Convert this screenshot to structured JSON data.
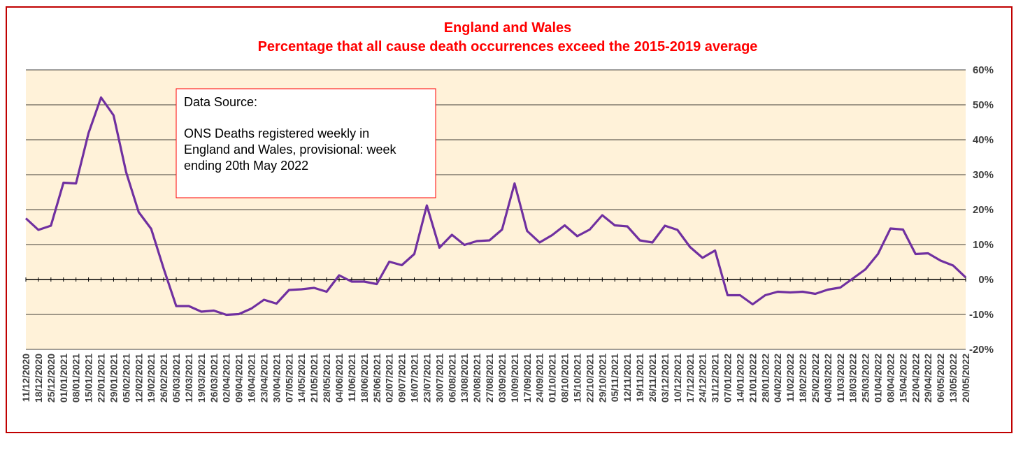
{
  "chart_data": {
    "type": "line",
    "title": "England and Wales",
    "subtitle": "Percentage that all cause death occurrences exceed the 2015-2019 average",
    "xlabel": "",
    "ylabel": "",
    "ylim": [
      -20,
      60
    ],
    "yticks": [
      "-20%",
      "-10%",
      "0%",
      "10%",
      "20%",
      "30%",
      "40%",
      "50%",
      "60%"
    ],
    "grid": true,
    "legend": "none",
    "annotation": {
      "lines": [
        "Data Source:",
        "",
        "ONS Deaths registered weekly in",
        "England and Wales, provisional: week",
        "ending 20th May 2022"
      ]
    },
    "colors": {
      "line": "#7030a0",
      "plot_background": "#fff2d9",
      "title": "#ff0000",
      "border": "#c00000"
    },
    "x": [
      "11/12/2020",
      "18/12/2020",
      "25/12/2020",
      "01/01/2021",
      "08/01/2021",
      "15/01/2021",
      "22/01/2021",
      "29/01/2021",
      "05/02/2021",
      "12/02/2021",
      "19/02/2021",
      "26/02/2021",
      "05/03/2021",
      "12/03/2021",
      "19/03/2021",
      "26/03/2021",
      "02/04/2021",
      "09/04/2021",
      "16/04/2021",
      "23/04/2021",
      "30/04/2021",
      "07/05/2021",
      "14/05/2021",
      "21/05/2021",
      "28/05/2021",
      "04/06/2021",
      "11/06/2021",
      "18/06/2021",
      "25/06/2021",
      "02/07/2021",
      "09/07/2021",
      "16/07/2021",
      "23/07/2021",
      "30/07/2021",
      "06/08/2021",
      "13/08/2021",
      "20/08/2021",
      "27/08/2021",
      "03/09/2021",
      "10/09/2021",
      "17/09/2021",
      "24/09/2021",
      "01/10/2021",
      "08/10/2021",
      "15/10/2021",
      "22/10/2021",
      "29/10/2021",
      "05/11/2021",
      "12/11/2021",
      "19/11/2021",
      "26/11/2021",
      "03/12/2021",
      "10/12/2021",
      "17/12/2021",
      "24/12/2021",
      "31/12/2021",
      "07/01/2022",
      "14/01/2022",
      "21/01/2022",
      "28/01/2022",
      "04/02/2022",
      "11/02/2022",
      "18/02/2022",
      "25/02/2022",
      "04/03/2022",
      "11/03/2022",
      "18/03/2022",
      "25/03/2022",
      "01/04/2022",
      "08/04/2022",
      "15/04/2022",
      "22/04/2022",
      "29/04/2022",
      "06/05/2022",
      "13/05/2022",
      "20/05/2022"
    ],
    "series": [
      {
        "values": [
          17.5,
          14.2,
          15.4,
          27.7,
          27.5,
          41.9,
          52.1,
          47,
          30.7,
          19.3,
          14.5,
          3.1,
          -7.6,
          -7.6,
          -9.2,
          -8.9,
          -10.1,
          -9.9,
          -8.3,
          -5.8,
          -6.9,
          -3,
          -2.8,
          -2.4,
          -3.5,
          1.2,
          -0.6,
          -0.6,
          -1.3,
          5.1,
          4.1,
          7.3,
          21.2,
          9.1,
          12.8,
          9.9,
          11,
          11.2,
          14.3,
          27.5,
          13.9,
          10.6,
          12.7,
          15.5,
          12.4,
          14.3,
          18.4,
          15.5,
          15.2,
          11.2,
          10.6,
          15.4,
          14.2,
          9.3,
          6.2,
          8.3,
          -4.5,
          -4.5,
          -7.1,
          -4.5,
          -3.5,
          -3.7,
          -3.5,
          -4.1,
          -2.9,
          -2.3,
          0.3,
          2.9,
          7.3,
          14.6,
          14.3,
          7.3,
          7.5,
          5.4,
          4,
          0.6
        ]
      }
    ]
  }
}
